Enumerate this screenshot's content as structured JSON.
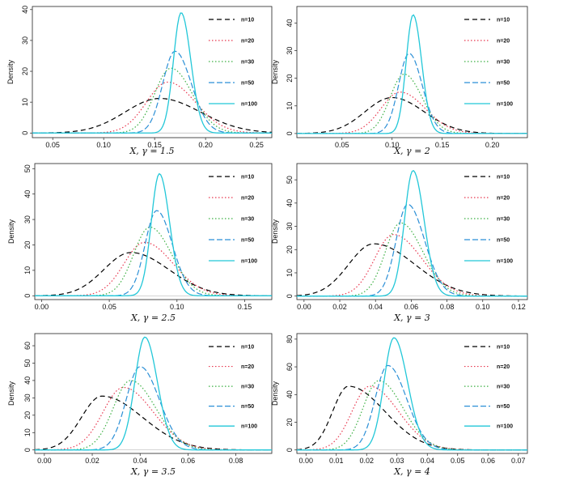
{
  "figure": {
    "background": "#ffffff"
  },
  "series_styles": [
    {
      "name": "n=10",
      "color": "#000000",
      "dash": "6,4"
    },
    {
      "name": "n=20",
      "color": "#e8384f",
      "dash": "1.5,2.5"
    },
    {
      "name": "n=30",
      "color": "#3cb043",
      "dash": "1.5,2.5"
    },
    {
      "name": "n=50",
      "color": "#2b8fd6",
      "dash": "7,3"
    },
    {
      "name": "n=100",
      "color": "#22c7d8",
      "dash": ""
    }
  ],
  "chart_data": [
    {
      "type": "line",
      "title": "",
      "xlabel": "X, γ = 1.5",
      "ylabel": "Density",
      "xlim": [
        0.03,
        0.265
      ],
      "ylim": [
        -1.5,
        41
      ],
      "xticks": [
        0.05,
        0.1,
        0.15,
        0.2,
        0.25
      ],
      "xtick_labels": [
        "0.05",
        "0.10",
        "0.15",
        "0.20",
        "0.25"
      ],
      "yticks": [
        0,
        10,
        20,
        30,
        40
      ],
      "ytick_labels": [
        "0",
        "10",
        "20",
        "30",
        "40"
      ],
      "legend": [
        "n=10",
        "n=20",
        "n=30",
        "n=50",
        "n=100"
      ],
      "series": [
        {
          "name": "n=10",
          "peak_x": 0.155,
          "peak_y": 11.2,
          "sd_left": 0.034,
          "sd_right": 0.04
        },
        {
          "name": "n=20",
          "peak_x": 0.163,
          "peak_y": 16.5,
          "sd_left": 0.021,
          "sd_right": 0.027
        },
        {
          "name": "n=30",
          "peak_x": 0.166,
          "peak_y": 21.0,
          "sd_left": 0.016,
          "sd_right": 0.021
        },
        {
          "name": "n=50",
          "peak_x": 0.17,
          "peak_y": 26.5,
          "sd_left": 0.012,
          "sd_right": 0.016
        },
        {
          "name": "n=100",
          "peak_x": 0.176,
          "peak_y": 39.0,
          "sd_left": 0.0075,
          "sd_right": 0.0095
        }
      ]
    },
    {
      "type": "line",
      "title": "",
      "xlabel": "X, γ = 2",
      "ylabel": "Density",
      "xlim": [
        0.005,
        0.235
      ],
      "ylim": [
        -1.5,
        46
      ],
      "xticks": [
        0.05,
        0.1,
        0.15,
        0.2
      ],
      "xtick_labels": [
        "0.05",
        "0.10",
        "0.15",
        "0.20"
      ],
      "yticks": [
        0,
        10,
        20,
        30,
        40
      ],
      "ytick_labels": [
        "0",
        "10",
        "20",
        "30",
        "40"
      ],
      "legend": [
        "n=10",
        "n=20",
        "n=30",
        "n=50",
        "n=100"
      ],
      "series": [
        {
          "name": "n=10",
          "peak_x": 0.1,
          "peak_y": 13.0,
          "sd_left": 0.027,
          "sd_right": 0.032
        },
        {
          "name": "n=20",
          "peak_x": 0.108,
          "peak_y": 15.0,
          "sd_left": 0.019,
          "sd_right": 0.025
        },
        {
          "name": "n=30",
          "peak_x": 0.112,
          "peak_y": 21.5,
          "sd_left": 0.014,
          "sd_right": 0.018
        },
        {
          "name": "n=50",
          "peak_x": 0.117,
          "peak_y": 29.0,
          "sd_left": 0.0105,
          "sd_right": 0.013
        },
        {
          "name": "n=100",
          "peak_x": 0.121,
          "peak_y": 43.0,
          "sd_left": 0.007,
          "sd_right": 0.0085
        }
      ]
    },
    {
      "type": "line",
      "title": "",
      "xlabel": "X, γ = 2.5",
      "ylabel": "Density",
      "xlim": [
        -0.005,
        0.17
      ],
      "ylim": [
        -1.5,
        52
      ],
      "xticks": [
        0.0,
        0.05,
        0.1,
        0.15
      ],
      "xtick_labels": [
        "0.00",
        "0.05",
        "0.10",
        "0.15"
      ],
      "yticks": [
        0,
        10,
        20,
        30,
        40,
        50
      ],
      "ytick_labels": [
        "0",
        "10",
        "20",
        "30",
        "40",
        "50"
      ],
      "legend": [
        "n=10",
        "n=20",
        "n=30",
        "n=50",
        "n=100"
      ],
      "series": [
        {
          "name": "n=10",
          "peak_x": 0.066,
          "peak_y": 17.0,
          "sd_left": 0.02,
          "sd_right": 0.028
        },
        {
          "name": "n=20",
          "peak_x": 0.076,
          "peak_y": 21.0,
          "sd_left": 0.015,
          "sd_right": 0.021
        },
        {
          "name": "n=30",
          "peak_x": 0.08,
          "peak_y": 27.0,
          "sd_left": 0.012,
          "sd_right": 0.016
        },
        {
          "name": "n=50",
          "peak_x": 0.085,
          "peak_y": 33.5,
          "sd_left": 0.0085,
          "sd_right": 0.0115
        },
        {
          "name": "n=100",
          "peak_x": 0.087,
          "peak_y": 48.0,
          "sd_left": 0.006,
          "sd_right": 0.0075
        }
      ]
    },
    {
      "type": "line",
      "title": "",
      "xlabel": "X, γ = 3",
      "ylabel": "Density",
      "xlim": [
        -0.004,
        0.125
      ],
      "ylim": [
        -1.5,
        57
      ],
      "xticks": [
        0.0,
        0.02,
        0.04,
        0.06,
        0.08,
        0.1,
        0.12
      ],
      "xtick_labels": [
        "0.00",
        "0.02",
        "0.04",
        "0.06",
        "0.08",
        "0.10",
        "0.12"
      ],
      "yticks": [
        0,
        10,
        20,
        30,
        40,
        50
      ],
      "ytick_labels": [
        "0",
        "10",
        "20",
        "30",
        "40",
        "50"
      ],
      "legend": [
        "n=10",
        "n=20",
        "n=30",
        "n=50",
        "n=100"
      ],
      "series": [
        {
          "name": "n=10",
          "peak_x": 0.039,
          "peak_y": 22.5,
          "sd_left": 0.014,
          "sd_right": 0.023
        },
        {
          "name": "n=20",
          "peak_x": 0.05,
          "peak_y": 26.5,
          "sd_left": 0.0105,
          "sd_right": 0.016
        },
        {
          "name": "n=30",
          "peak_x": 0.054,
          "peak_y": 31.5,
          "sd_left": 0.0085,
          "sd_right": 0.0125
        },
        {
          "name": "n=50",
          "peak_x": 0.058,
          "peak_y": 39.5,
          "sd_left": 0.0065,
          "sd_right": 0.0095
        },
        {
          "name": "n=100",
          "peak_x": 0.061,
          "peak_y": 54.0,
          "sd_left": 0.0048,
          "sd_right": 0.0062
        }
      ]
    },
    {
      "type": "line",
      "title": "",
      "xlabel": "X, γ = 3.5",
      "ylabel": "Density",
      "xlim": [
        -0.004,
        0.095
      ],
      "ylim": [
        -2,
        67
      ],
      "xticks": [
        0.0,
        0.02,
        0.04,
        0.06,
        0.08
      ],
      "xtick_labels": [
        "0.00",
        "0.02",
        "0.04",
        "0.06",
        "0.08"
      ],
      "yticks": [
        0,
        10,
        20,
        30,
        40,
        50,
        60
      ],
      "ytick_labels": [
        "0",
        "10",
        "20",
        "30",
        "40",
        "50",
        "60"
      ],
      "legend": [
        "n=10",
        "n=20",
        "n=30",
        "n=50",
        "n=100"
      ],
      "series": [
        {
          "name": "n=10",
          "peak_x": 0.024,
          "peak_y": 31.0,
          "sd_left": 0.0085,
          "sd_right": 0.017
        },
        {
          "name": "n=20",
          "peak_x": 0.033,
          "peak_y": 36.0,
          "sd_left": 0.0085,
          "sd_right": 0.0125
        },
        {
          "name": "n=30",
          "peak_x": 0.036,
          "peak_y": 40.0,
          "sd_left": 0.0072,
          "sd_right": 0.0105
        },
        {
          "name": "n=50",
          "peak_x": 0.04,
          "peak_y": 48.0,
          "sd_left": 0.0058,
          "sd_right": 0.008
        },
        {
          "name": "n=100",
          "peak_x": 0.042,
          "peak_y": 65.0,
          "sd_left": 0.0042,
          "sd_right": 0.0052
        }
      ]
    },
    {
      "type": "line",
      "title": "",
      "xlabel": "X, γ = 4",
      "ylabel": "Density",
      "xlim": [
        -0.003,
        0.073
      ],
      "ylim": [
        -2.5,
        84
      ],
      "xticks": [
        0.0,
        0.01,
        0.02,
        0.03,
        0.04,
        0.05,
        0.06,
        0.07
      ],
      "xtick_labels": [
        "0.00",
        "0.01",
        "0.02",
        "0.03",
        "0.04",
        "0.05",
        "0.06",
        "0.07"
      ],
      "yticks": [
        0,
        20,
        40,
        60,
        80
      ],
      "ytick_labels": [
        "0",
        "20",
        "40",
        "60",
        "80"
      ],
      "legend": [
        "n=10",
        "n=20",
        "n=30",
        "n=50",
        "n=100"
      ],
      "series": [
        {
          "name": "n=10",
          "peak_x": 0.014,
          "peak_y": 46.0,
          "sd_left": 0.0052,
          "sd_right": 0.012
        },
        {
          "name": "n=20",
          "peak_x": 0.021,
          "peak_y": 46.0,
          "sd_left": 0.0058,
          "sd_right": 0.0095
        },
        {
          "name": "n=30",
          "peak_x": 0.024,
          "peak_y": 50.0,
          "sd_left": 0.0052,
          "sd_right": 0.008
        },
        {
          "name": "n=50",
          "peak_x": 0.027,
          "peak_y": 61.0,
          "sd_left": 0.0042,
          "sd_right": 0.0062
        },
        {
          "name": "n=100",
          "peak_x": 0.029,
          "peak_y": 81.0,
          "sd_left": 0.0033,
          "sd_right": 0.0045
        }
      ]
    }
  ]
}
